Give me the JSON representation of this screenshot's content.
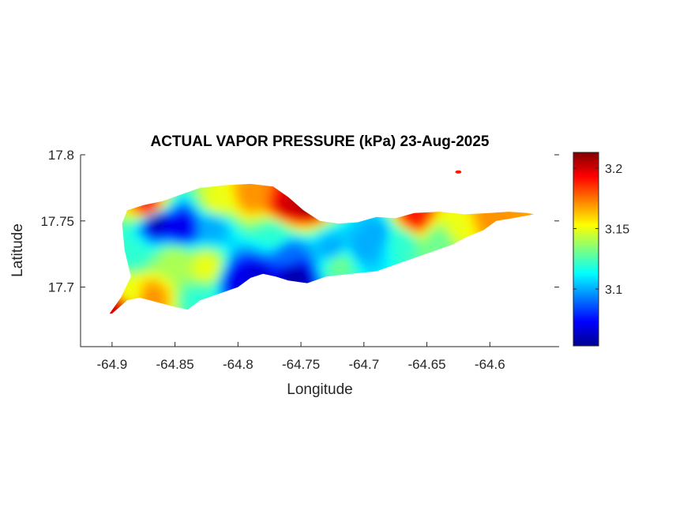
{
  "chart_data": {
    "type": "heatmap",
    "title": "ACTUAL VAPOR PRESSURE (kPa) 23-Aug-2025",
    "xlabel": "Longitude",
    "ylabel": "Latitude",
    "xlim": [
      -64.925,
      -64.545
    ],
    "ylim": [
      17.655,
      17.8
    ],
    "xticks": [
      -64.9,
      -64.85,
      -64.8,
      -64.75,
      -64.7,
      -64.65,
      -64.6
    ],
    "xtick_labels": [
      "-64.9",
      "-64.85",
      "-64.8",
      "-64.75",
      "-64.7",
      "-64.65",
      "-64.6"
    ],
    "yticks": [
      17.7,
      17.75,
      17.8
    ],
    "ytick_labels": [
      "17.7",
      "17.75",
      "17.8"
    ],
    "colorbar": {
      "colormap": "jet",
      "clim": [
        3.053,
        3.213
      ],
      "ticks": [
        3.1,
        3.15,
        3.2
      ],
      "tick_labels": [
        "3.1",
        "3.15",
        "3.2"
      ]
    },
    "region_outline": [
      [
        -64.9,
        17.68
      ],
      [
        -64.888,
        17.69
      ],
      [
        -64.878,
        17.692
      ],
      [
        -64.87,
        17.69
      ],
      [
        -64.85,
        17.685
      ],
      [
        -64.84,
        17.683
      ],
      [
        -64.83,
        17.69
      ],
      [
        -64.815,
        17.695
      ],
      [
        -64.8,
        17.7
      ],
      [
        -64.79,
        17.707
      ],
      [
        -64.78,
        17.71
      ],
      [
        -64.77,
        17.708
      ],
      [
        -64.76,
        17.705
      ],
      [
        -64.745,
        17.703
      ],
      [
        -64.73,
        17.708
      ],
      [
        -64.71,
        17.71
      ],
      [
        -64.69,
        17.712
      ],
      [
        -64.675,
        17.717
      ],
      [
        -64.66,
        17.722
      ],
      [
        -64.645,
        17.727
      ],
      [
        -64.63,
        17.732
      ],
      [
        -64.618,
        17.738
      ],
      [
        -64.605,
        17.743
      ],
      [
        -64.595,
        17.75
      ],
      [
        -64.582,
        17.752
      ],
      [
        -64.565,
        17.755
      ],
      [
        -64.57,
        17.756
      ],
      [
        -64.585,
        17.757
      ],
      [
        -64.6,
        17.756
      ],
      [
        -64.62,
        17.755
      ],
      [
        -64.64,
        17.757
      ],
      [
        -64.66,
        17.756
      ],
      [
        -64.675,
        17.752
      ],
      [
        -64.69,
        17.753
      ],
      [
        -64.705,
        17.749
      ],
      [
        -64.72,
        17.748
      ],
      [
        -64.735,
        17.75
      ],
      [
        -64.748,
        17.758
      ],
      [
        -64.76,
        17.768
      ],
      [
        -64.772,
        17.776
      ],
      [
        -64.79,
        17.778
      ],
      [
        -64.81,
        17.777
      ],
      [
        -64.83,
        17.775
      ],
      [
        -64.845,
        17.77
      ],
      [
        -64.86,
        17.765
      ],
      [
        -64.875,
        17.762
      ],
      [
        -64.888,
        17.758
      ],
      [
        -64.892,
        17.748
      ],
      [
        -64.89,
        17.728
      ],
      [
        -64.885,
        17.708
      ],
      [
        -64.893,
        17.692
      ],
      [
        -64.902,
        17.68
      ]
    ],
    "sample_points": [
      {
        "lon": -64.865,
        "lat": 17.75,
        "value": 3.06
      },
      {
        "lon": -64.845,
        "lat": 17.745,
        "value": 3.07
      },
      {
        "lon": -64.82,
        "lat": 17.745,
        "value": 3.1
      },
      {
        "lon": -64.885,
        "lat": 17.725,
        "value": 3.12
      },
      {
        "lon": -64.85,
        "lat": 17.72,
        "value": 3.14
      },
      {
        "lon": -64.825,
        "lat": 17.715,
        "value": 3.15
      },
      {
        "lon": -64.8,
        "lat": 17.705,
        "value": 3.07
      },
      {
        "lon": -64.785,
        "lat": 17.705,
        "value": 3.065
      },
      {
        "lon": -64.755,
        "lat": 17.708,
        "value": 3.06
      },
      {
        "lon": -64.76,
        "lat": 17.725,
        "value": 3.09
      },
      {
        "lon": -64.725,
        "lat": 17.728,
        "value": 3.1
      },
      {
        "lon": -64.7,
        "lat": 17.73,
        "value": 3.1
      },
      {
        "lon": -64.69,
        "lat": 17.74,
        "value": 3.1
      },
      {
        "lon": -64.67,
        "lat": 17.735,
        "value": 3.12
      },
      {
        "lon": -64.64,
        "lat": 17.735,
        "value": 3.13
      },
      {
        "lon": -64.625,
        "lat": 17.745,
        "value": 3.15
      },
      {
        "lon": -64.6,
        "lat": 17.752,
        "value": 3.17
      },
      {
        "lon": -64.66,
        "lat": 17.752,
        "value": 3.19
      },
      {
        "lon": -64.745,
        "lat": 17.765,
        "value": 3.21
      },
      {
        "lon": -64.76,
        "lat": 17.76,
        "value": 3.2
      },
      {
        "lon": -64.79,
        "lat": 17.77,
        "value": 3.17
      },
      {
        "lon": -64.815,
        "lat": 17.765,
        "value": 3.15
      },
      {
        "lon": -64.87,
        "lat": 17.76,
        "value": 3.19
      },
      {
        "lon": -64.895,
        "lat": 17.683,
        "value": 3.2
      },
      {
        "lon": -64.885,
        "lat": 17.695,
        "value": 3.15
      },
      {
        "lon": -64.87,
        "lat": 17.692,
        "value": 3.17
      },
      {
        "lon": -64.83,
        "lat": 17.69,
        "value": 3.12
      },
      {
        "lon": -64.77,
        "lat": 17.74,
        "value": 3.12
      },
      {
        "lon": -64.72,
        "lat": 17.718,
        "value": 3.13
      },
      {
        "lon": -64.625,
        "lat": 17.787,
        "value": 3.19
      }
    ]
  }
}
